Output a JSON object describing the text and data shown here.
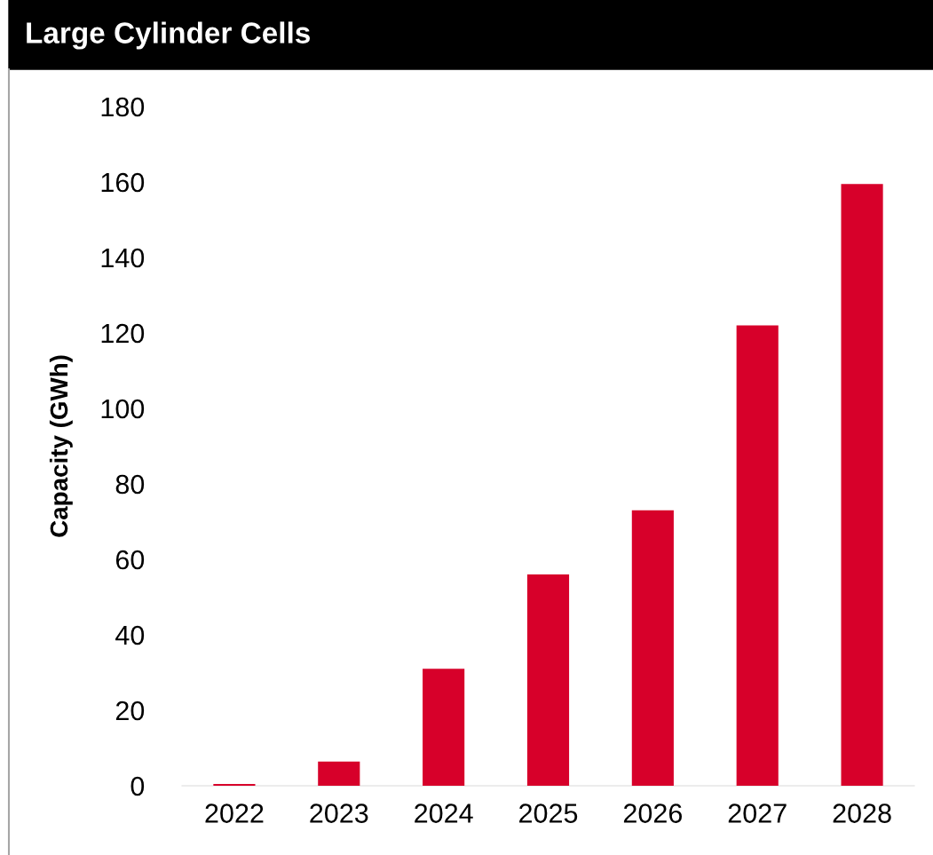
{
  "chart_data": {
    "type": "bar",
    "title": "Large Cylinder Cells",
    "ylabel": "Capacity (GWh)",
    "categories": [
      "2022",
      "2023",
      "2024",
      "2025",
      "2026",
      "2027",
      "2028"
    ],
    "values": [
      0.5,
      6.4,
      31,
      56,
      73,
      122,
      159.5
    ],
    "color": "#d7002a",
    "ylim": [
      0,
      180
    ],
    "yticks": [
      0,
      20,
      40,
      60,
      80,
      100,
      120,
      140,
      160,
      180
    ],
    "grid": false,
    "legend": false
  }
}
